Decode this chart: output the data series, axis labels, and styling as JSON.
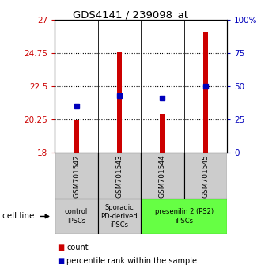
{
  "title": "GDS4141 / 239098_at",
  "samples": [
    "GSM701542",
    "GSM701543",
    "GSM701544",
    "GSM701545"
  ],
  "red_values": [
    20.2,
    24.8,
    20.6,
    26.2
  ],
  "blue_percentile": [
    35,
    43,
    41,
    50
  ],
  "ylim_left": [
    18,
    27
  ],
  "ylim_right": [
    0,
    100
  ],
  "yticks_left": [
    18,
    20.25,
    22.5,
    24.75,
    27
  ],
  "yticks_right": [
    0,
    25,
    50,
    75,
    100
  ],
  "ytick_labels_left": [
    "18",
    "20.25",
    "22.5",
    "24.75",
    "27"
  ],
  "ytick_labels_right": [
    "0",
    "25",
    "50",
    "75",
    "100%"
  ],
  "bar_bottom": 18,
  "bar_width": 0.12,
  "red_color": "#cc0000",
  "blue_color": "#0000bb",
  "cell_line_label": "cell line",
  "legend_red": "count",
  "legend_blue": "percentile rank within the sample",
  "sample_box_color": "#cccccc",
  "group_data": [
    {
      "start": 0,
      "end": 0,
      "color": "#cccccc",
      "label": "control\nIPSCs"
    },
    {
      "start": 1,
      "end": 1,
      "color": "#cccccc",
      "label": "Sporadic\nPD-derived\niPSCs"
    },
    {
      "start": 2,
      "end": 3,
      "color": "#66ff44",
      "label": "presenilin 2 (PS2)\niPSCs"
    }
  ]
}
